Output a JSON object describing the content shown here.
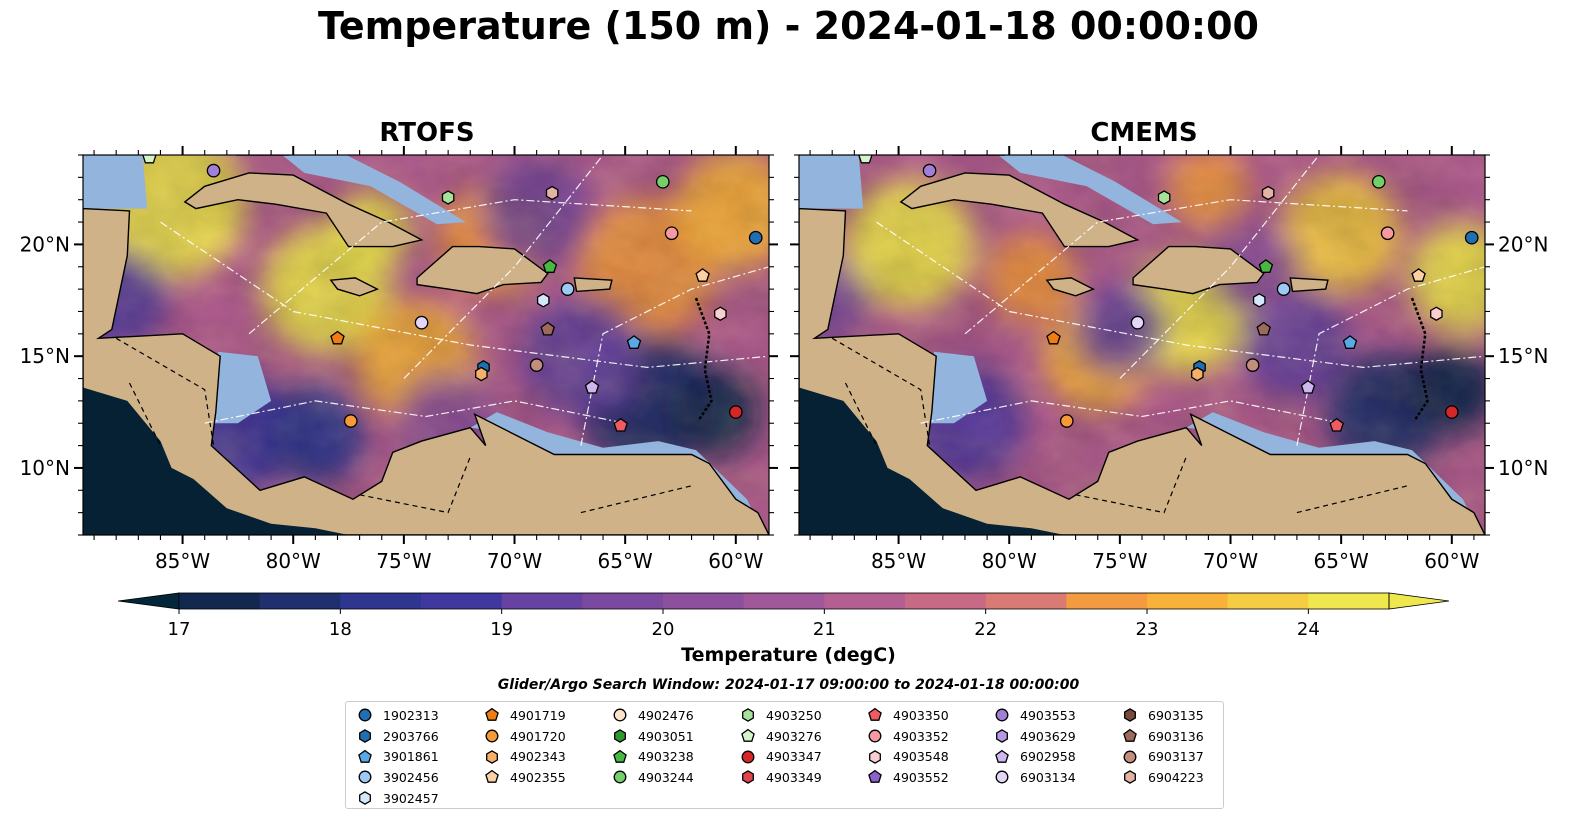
{
  "figure_title": "Temperature (150 m) - 2024-01-18 00:00:00",
  "panels": [
    {
      "title": "RTOFS"
    },
    {
      "title": "CMEMS"
    }
  ],
  "axes": {
    "lon_ticks": [
      "85°W",
      "80°W",
      "75°W",
      "70°W",
      "65°W",
      "60°W"
    ],
    "lat_ticks": [
      "20°N",
      "15°N",
      "10°N"
    ],
    "lon_range": [
      -89.5,
      -58.5
    ],
    "lat_range": [
      7,
      24
    ]
  },
  "colorbar": {
    "label": "Temperature (degC)",
    "ticks": [
      "17",
      "18",
      "19",
      "20",
      "21",
      "22",
      "23",
      "24"
    ],
    "range": [
      16.5,
      24.5
    ],
    "extend": "both",
    "colors": [
      "#04263a",
      "#12284f",
      "#20306e",
      "#2f3690",
      "#40379f",
      "#533aa2",
      "#6643a2",
      "#7a4aa0",
      "#8c509c",
      "#a1589a",
      "#b45f92",
      "#c86a86",
      "#d97a74",
      "#ea8a5b",
      "#f49a40",
      "#f8b23a",
      "#f6cc42",
      "#efe74e"
    ]
  },
  "search_window": "Glider/Argo Search Window: 2024-01-17 09:00:00 to 2024-01-18 00:00:00",
  "legend": {
    "columns": [
      [
        {
          "id": "1902313",
          "marker": "circle",
          "color": "#1f6fb2"
        },
        {
          "id": "2903766",
          "marker": "hexagon",
          "color": "#1f6fb2"
        },
        {
          "id": "3901861",
          "marker": "pentagon",
          "color": "#5aa9e6"
        },
        {
          "id": "3902456",
          "marker": "circle",
          "color": "#9ccaf2"
        },
        {
          "id": "3902457",
          "marker": "hexagon",
          "color": "#d5e8fb"
        }
      ],
      [
        {
          "id": "4901719",
          "marker": "pentagon",
          "color": "#f07d12"
        },
        {
          "id": "4901720",
          "marker": "circle",
          "color": "#f59a38"
        },
        {
          "id": "4902343",
          "marker": "hexagon",
          "color": "#f7b06a"
        },
        {
          "id": "4902355",
          "marker": "pentagon",
          "color": "#fbd0a2"
        }
      ],
      [
        {
          "id": "4902476",
          "marker": "circle",
          "color": "#fde3cc"
        },
        {
          "id": "4903051",
          "marker": "hexagon",
          "color": "#2e9a2e"
        },
        {
          "id": "4903238",
          "marker": "pentagon",
          "color": "#49b843"
        },
        {
          "id": "4903244",
          "marker": "circle",
          "color": "#72cf6a"
        }
      ],
      [
        {
          "id": "4903250",
          "marker": "hexagon",
          "color": "#a6e29a"
        },
        {
          "id": "4903276",
          "marker": "pentagon",
          "color": "#d4f5cc"
        },
        {
          "id": "4903347",
          "marker": "circle",
          "color": "#d62728"
        },
        {
          "id": "4903349",
          "marker": "hexagon",
          "color": "#e0444a"
        }
      ],
      [
        {
          "id": "4903350",
          "marker": "pentagon",
          "color": "#ef5b63"
        },
        {
          "id": "4903352",
          "marker": "circle",
          "color": "#f59ba0"
        },
        {
          "id": "4903548",
          "marker": "hexagon",
          "color": "#fbcfd1"
        },
        {
          "id": "4903552",
          "marker": "pentagon",
          "color": "#8a62c8"
        }
      ],
      [
        {
          "id": "4903553",
          "marker": "circle",
          "color": "#a07fd6"
        },
        {
          "id": "4903629",
          "marker": "hexagon",
          "color": "#b89ae2"
        },
        {
          "id": "6902958",
          "marker": "pentagon",
          "color": "#cdb7ee"
        },
        {
          "id": "6903134",
          "marker": "circle",
          "color": "#e3d6f7"
        }
      ],
      [
        {
          "id": "6903135",
          "marker": "hexagon",
          "color": "#7a4a3c"
        },
        {
          "id": "6903136",
          "marker": "pentagon",
          "color": "#9c6b5b"
        },
        {
          "id": "6903137",
          "marker": "circle",
          "color": "#c48e7c"
        },
        {
          "id": "6904223",
          "marker": "hexagon",
          "color": "#e3b3a3"
        }
      ]
    ]
  },
  "chart_data": {
    "type": "heatmap",
    "title": "Temperature (150 m) - 2024-01-18 00:00:00",
    "xlabel": "",
    "ylabel": "",
    "colorbar_label": "Temperature (degC)",
    "value_range": [
      16.5,
      24.5
    ],
    "panels": [
      "RTOFS",
      "CMEMS"
    ],
    "floats": [
      {
        "id": "1902313",
        "lon": -59.1,
        "lat": 20.3
      },
      {
        "id": "2903766",
        "lon": -71.4,
        "lat": 14.5
      },
      {
        "id": "3901861",
        "lon": -64.6,
        "lat": 15.6
      },
      {
        "id": "3902456",
        "lon": -67.6,
        "lat": 18.0
      },
      {
        "id": "3902457",
        "lon": -68.7,
        "lat": 17.5
      },
      {
        "id": "4901719",
        "lon": -78.0,
        "lat": 15.8
      },
      {
        "id": "4901720",
        "lon": -77.4,
        "lat": 12.1
      },
      {
        "id": "4902343",
        "lon": -71.5,
        "lat": 14.2
      },
      {
        "id": "4902355",
        "lon": -61.5,
        "lat": 18.6
      },
      {
        "id": "4903244",
        "lon": -63.3,
        "lat": 22.8
      },
      {
        "id": "4903238",
        "lon": -68.4,
        "lat": 19.0
      },
      {
        "id": "4903250",
        "lon": -73.0,
        "lat": 22.1
      },
      {
        "id": "4903347",
        "lon": -60.0,
        "lat": 12.5
      },
      {
        "id": "4903350",
        "lon": -65.2,
        "lat": 11.9
      },
      {
        "id": "4903352",
        "lon": -62.9,
        "lat": 20.5
      },
      {
        "id": "4903553",
        "lon": -83.6,
        "lat": 23.3
      },
      {
        "id": "6902958",
        "lon": -66.5,
        "lat": 13.6
      },
      {
        "id": "6903134",
        "lon": -74.2,
        "lat": 16.5
      },
      {
        "id": "6903136",
        "lon": -68.5,
        "lat": 16.2
      },
      {
        "id": "6903137",
        "lon": -69.0,
        "lat": 14.6
      },
      {
        "id": "4903276",
        "lon": -86.5,
        "lat": 23.9
      },
      {
        "id": "6904223",
        "lon": -68.3,
        "lat": 22.3
      },
      {
        "id": "4903548",
        "lon": -60.7,
        "lat": 16.9
      }
    ]
  }
}
